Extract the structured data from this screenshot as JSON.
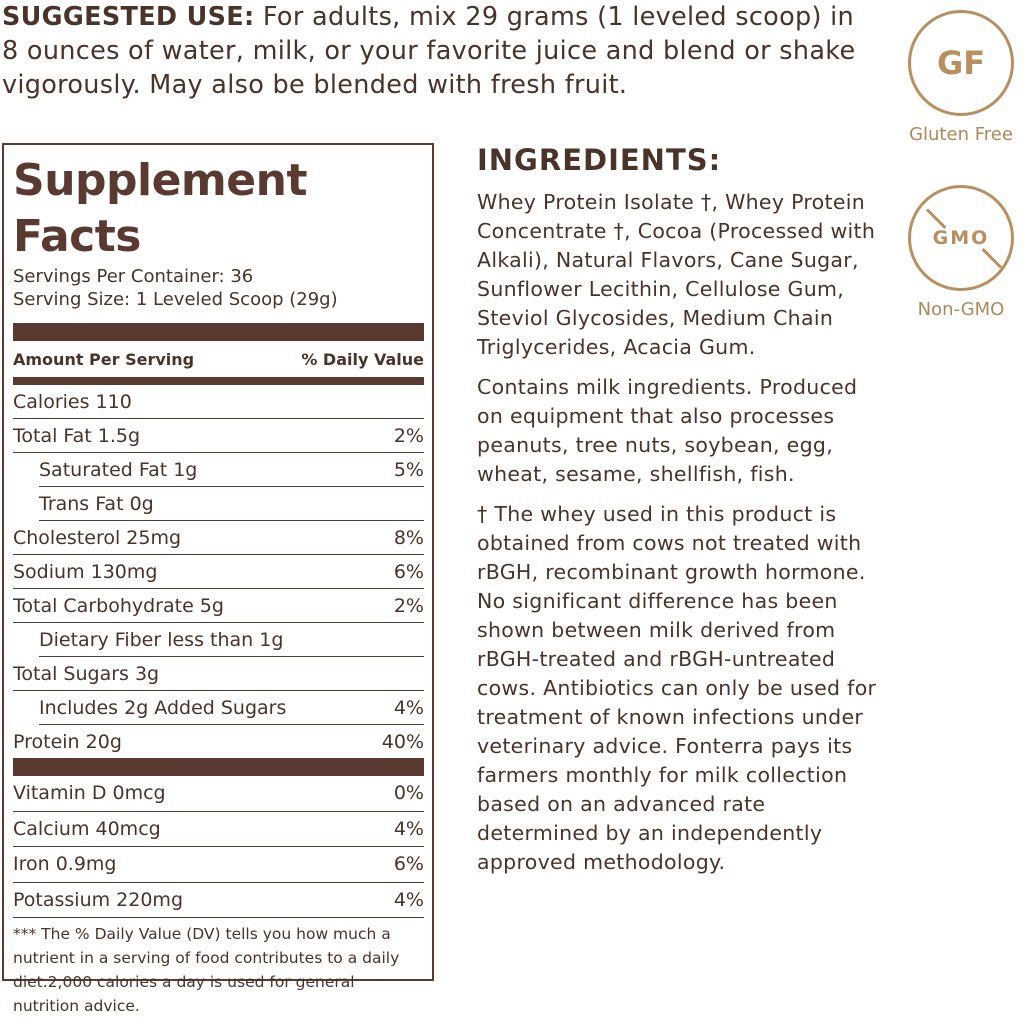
{
  "suggested_use": {
    "label": "SUGGESTED USE:",
    "text": " For adults, mix 29 grams (1 leveled scoop) in 8 ounces of water, milk, or your favorite juice and blend or shake vigorously. May also be blended with fresh fruit."
  },
  "facts": {
    "title": "Supplement Facts",
    "servings_per_container": "Servings Per Container: 36",
    "serving_size": "Serving Size: 1 Leveled Scoop (29g)",
    "amount_header": "Amount Per Serving",
    "dv_header": "% Daily Value",
    "rows": [
      {
        "name": "Calories 110",
        "dv": ""
      },
      {
        "name": "Total Fat 1.5g",
        "dv": "2%"
      },
      {
        "name": "Saturated Fat 1g",
        "dv": "5%"
      },
      {
        "name": "Trans Fat 0g",
        "dv": ""
      },
      {
        "name": "Cholesterol 25mg",
        "dv": "8%"
      },
      {
        "name": "Sodium 130mg",
        "dv": "6%"
      },
      {
        "name": "Total Carbohydrate 5g",
        "dv": "2%"
      },
      {
        "name": "Dietary Fiber less than 1g",
        "dv": ""
      },
      {
        "name": "Total Sugars 3g",
        "dv": ""
      },
      {
        "name": "Includes 2g Added Sugars",
        "dv": "4%"
      },
      {
        "name": "Protein 20g",
        "dv": "40%"
      }
    ],
    "vitamins": [
      {
        "name": "Vitamin D 0mcg",
        "dv": "0%"
      },
      {
        "name": "Calcium 40mcg",
        "dv": "4%"
      },
      {
        "name": "Iron 0.9mg",
        "dv": "6%"
      },
      {
        "name": "Potassium 220mg",
        "dv": "4%"
      }
    ],
    "footnote": "*** The % Daily Value (DV) tells you how much a nutrient in a serving of food contributes to a daily diet.2,000 calories a day is used for general nutrition advice."
  },
  "ingredients": {
    "heading": "INGREDIENTS:",
    "list": "Whey Protein Isolate †, Whey Protein Concentrate †,   Cocoa (Processed with Alkali), Natural Flavors, Cane Sugar, Sunflower Lecithin, Cellulose Gum, Steviol Glycosides, Medium Chain Triglycerides, Acacia Gum.",
    "allergens": "Contains milk ingredients. Produced on equipment that also processes peanuts, tree nuts, soybean, egg, wheat, sesame, shellfish, fish.",
    "whey_note": "† The whey used in this product is obtained from cows not treated with rBGH, recombinant growth hormone. No significant difference has been shown between milk derived from rBGH-treated and rBGH-untreated cows. Antibiotics can only be used for treatment of known infections under veterinary advice. Fonterra pays its farmers monthly for milk collection based on an advanced rate determined by an independently approved methodology."
  },
  "badges": [
    {
      "icon": "gluten-free-icon",
      "mark": "GF",
      "label": "Gluten Free"
    },
    {
      "icon": "non-gmo-icon",
      "mark": "GMO",
      "label": "Non-GMO"
    }
  ],
  "colors": {
    "text": "#4a3328",
    "table": "#5a3a30",
    "badge": "#b89060"
  }
}
